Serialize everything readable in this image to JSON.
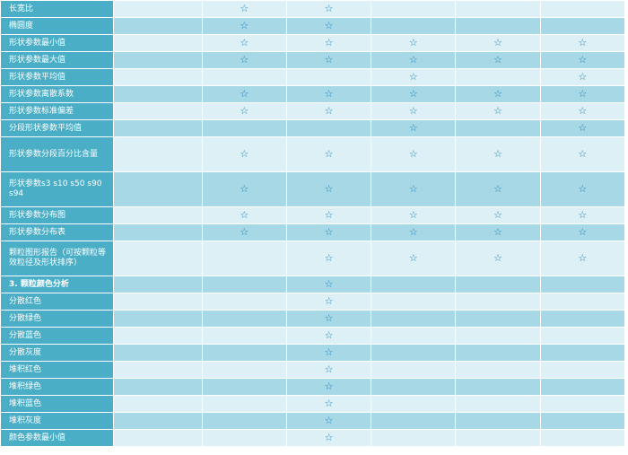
{
  "columns": [
    "",
    "",
    "",
    "",
    "",
    ""
  ],
  "rows": [
    {
      "label": "长宽比",
      "bold": false,
      "cells": [
        false,
        true,
        true,
        false,
        false,
        false
      ]
    },
    {
      "label": "椭圆度",
      "bold": false,
      "cells": [
        false,
        true,
        true,
        false,
        false,
        false
      ]
    },
    {
      "label": "形状参数最小值",
      "bold": false,
      "cells": [
        false,
        true,
        true,
        true,
        true,
        true
      ]
    },
    {
      "label": "形状参数最大值",
      "bold": false,
      "cells": [
        false,
        true,
        true,
        true,
        true,
        true
      ]
    },
    {
      "label": "形状参数平均值",
      "bold": false,
      "cells": [
        false,
        false,
        false,
        true,
        false,
        true
      ]
    },
    {
      "label": "形状参数离散系数",
      "bold": false,
      "cells": [
        false,
        true,
        true,
        true,
        true,
        true
      ]
    },
    {
      "label": "形状参数标准偏差",
      "bold": false,
      "cells": [
        false,
        true,
        true,
        true,
        true,
        true
      ]
    },
    {
      "label": "分段形状参数平均值",
      "bold": false,
      "cells": [
        false,
        false,
        false,
        true,
        false,
        true
      ]
    },
    {
      "label": "形状参数分段百分比含量",
      "bold": false,
      "cells": [
        false,
        true,
        true,
        true,
        true,
        true
      ]
    },
    {
      "label": "形状参数s3 s10 s50 s90 s94",
      "bold": false,
      "cells": [
        false,
        true,
        true,
        true,
        true,
        true
      ]
    },
    {
      "label": "形状参数分布图",
      "bold": false,
      "cells": [
        false,
        true,
        true,
        true,
        true,
        true
      ]
    },
    {
      "label": "形状参数分布表",
      "bold": false,
      "cells": [
        false,
        true,
        true,
        true,
        true,
        true
      ]
    },
    {
      "label": "颗粒图形报告（可按颗粒等效粒径及形状排序）",
      "bold": false,
      "cells": [
        false,
        false,
        true,
        true,
        true,
        true
      ]
    },
    {
      "label": "3. 颗粒颜色分析",
      "bold": true,
      "cells": [
        false,
        false,
        true,
        false,
        false,
        false
      ]
    },
    {
      "label": "分散红色",
      "bold": false,
      "cells": [
        false,
        false,
        true,
        false,
        false,
        false
      ]
    },
    {
      "label": "分散绿色",
      "bold": false,
      "cells": [
        false,
        false,
        true,
        false,
        false,
        false
      ]
    },
    {
      "label": "分散蓝色",
      "bold": false,
      "cells": [
        false,
        false,
        true,
        false,
        false,
        false
      ]
    },
    {
      "label": "分散灰度",
      "bold": false,
      "cells": [
        false,
        false,
        true,
        false,
        false,
        false
      ]
    },
    {
      "label": "堆积红色",
      "bold": false,
      "cells": [
        false,
        false,
        true,
        false,
        false,
        false
      ]
    },
    {
      "label": "堆积绿色",
      "bold": false,
      "cells": [
        false,
        false,
        true,
        false,
        false,
        false
      ]
    },
    {
      "label": "堆积蓝色",
      "bold": false,
      "cells": [
        false,
        false,
        true,
        false,
        false,
        false
      ]
    },
    {
      "label": "堆积灰度",
      "bold": false,
      "cells": [
        false,
        false,
        true,
        false,
        false,
        false
      ]
    },
    {
      "label": "颜色参数最小值",
      "bold": false,
      "cells": [
        false,
        false,
        true,
        false,
        false,
        false
      ]
    }
  ],
  "star_glyph": "☆",
  "colors": {
    "label_bg": "#4aaec6",
    "row_light": "#dcf0f6",
    "row_dark": "#a7d8e6",
    "star": "#1f7fb5"
  }
}
